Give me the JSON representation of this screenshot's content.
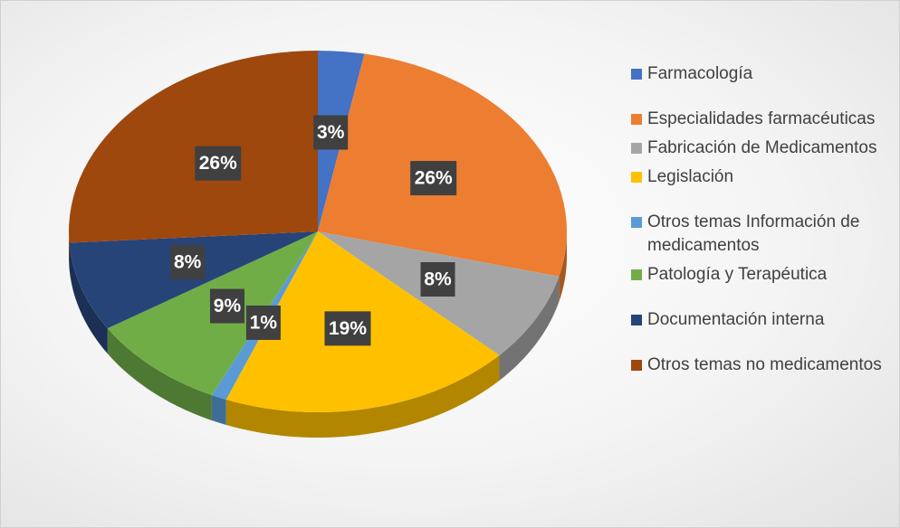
{
  "chart_data": {
    "type": "pie",
    "categories": [
      "Farmacología",
      "Especialidades farmacéuticas",
      "Fabricación de Medicamentos",
      "Legislación",
      "Otros temas Información de medicamentos",
      "Patología y Terapéutica",
      "Documentación interna",
      "Otros temas no medicamentos"
    ],
    "values": [
      3,
      26,
      8,
      19,
      1,
      9,
      8,
      26
    ],
    "value_labels": [
      "3%",
      "26%",
      "8%",
      "19%",
      "1%",
      "9%",
      "8%",
      "26%"
    ],
    "colors": [
      "#4472c4",
      "#ed7d31",
      "#a5a5a5",
      "#ffc000",
      "#5b9bd5",
      "#70ad47",
      "#264478",
      "#9e480e"
    ],
    "legend": "right"
  }
}
